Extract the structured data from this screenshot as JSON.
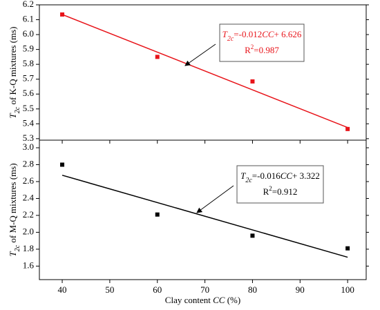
{
  "chart_data": [
    {
      "type": "scatter",
      "x": [
        40,
        60,
        80,
        100
      ],
      "values": [
        6.135,
        5.85,
        5.685,
        5.365
      ],
      "color": "#e8141a",
      "fit": {
        "x": [
          40,
          100
        ],
        "values": [
          6.135,
          5.375
        ]
      },
      "ylim": [
        5.29,
        6.2
      ],
      "yticks": [
        5.3,
        5.4,
        5.5,
        5.6,
        5.7,
        5.8,
        5.9,
        {
          "value": 6.0,
          "label": "6.0"
        },
        6.1,
        6.2
      ],
      "ylabel": [
        "T",
        "2c",
        "  of K-Q mixtures (ms)"
      ],
      "annotation": {
        "equation": [
          "T",
          "2c",
          "=-0.012",
          "CC",
          "+ 6.626"
        ],
        "r2": [
          "R",
          "2",
          "=0.987"
        ]
      }
    },
    {
      "type": "scatter",
      "x": [
        40,
        60,
        80,
        100
      ],
      "values": [
        2.8,
        2.21,
        1.96,
        1.81
      ],
      "color": "#000000",
      "fit": {
        "x": [
          40,
          100
        ],
        "values": [
          2.675,
          1.705
        ]
      },
      "xlim": [
        35.2,
        103.9
      ],
      "xticks": [
        40,
        50,
        60,
        70,
        80,
        90,
        100
      ],
      "xlabel": [
        "Clay content ",
        "CC",
        " (%)"
      ],
      "ylim": [
        1.44,
        3.09
      ],
      "yticks": [
        1.6,
        1.8,
        {
          "value": 2.0,
          "label": "2.0"
        },
        2.2,
        2.4,
        2.6,
        2.8,
        {
          "value": 3.0,
          "label": "3.0"
        }
      ],
      "ylabel": [
        "T",
        "2c",
        " of M-Q mixtures (ms)"
      ],
      "annotation": {
        "equation": [
          "T",
          "2c",
          "=-0.016",
          "CC",
          "+ 3.322"
        ],
        "r2": [
          "R",
          "2",
          "=0.912"
        ]
      }
    }
  ]
}
